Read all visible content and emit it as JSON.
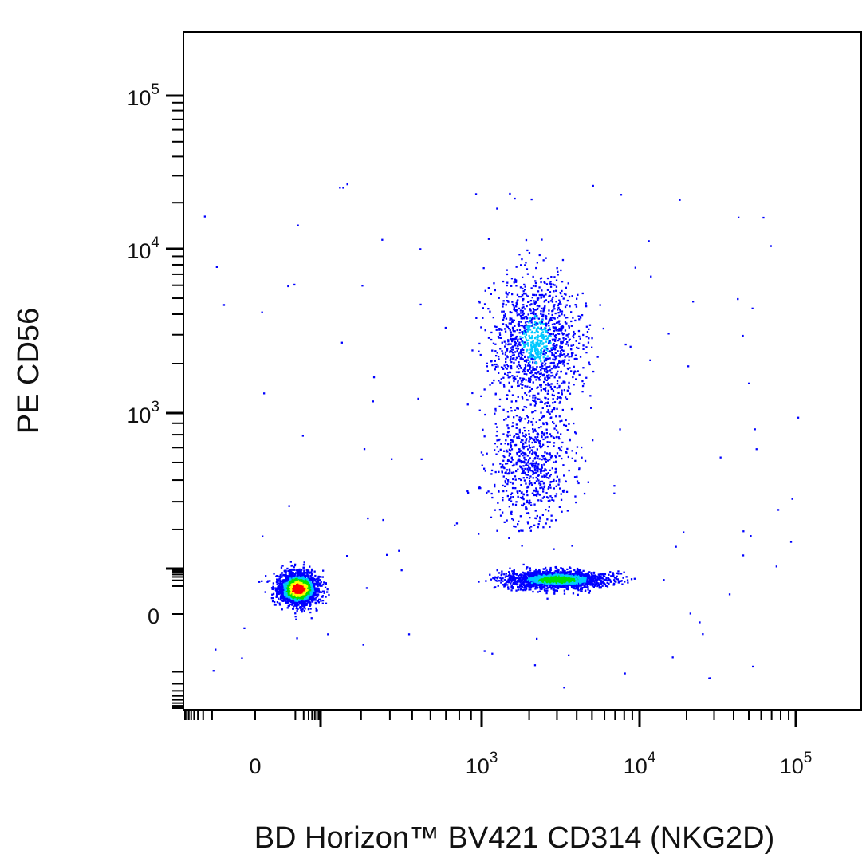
{
  "chart_data": {
    "type": "scatter",
    "subtype": "flow-cytometry-density-dot-plot",
    "xlabel": "BD Horizon™ BV421 CD314 (NKG2D)",
    "ylabel": "PE CD56",
    "x_scale": "biexponential",
    "y_scale": "biexponential",
    "x_ticks": [
      {
        "value": 0,
        "base": "0",
        "exp": ""
      },
      {
        "value": 1000,
        "base": "10",
        "exp": "3"
      },
      {
        "value": 10000,
        "base": "10",
        "exp": "4"
      },
      {
        "value": 100000,
        "base": "10",
        "exp": "5"
      }
    ],
    "y_ticks": [
      {
        "value": 0,
        "base": "0",
        "exp": ""
      },
      {
        "value": 1000,
        "base": "10",
        "exp": "3"
      },
      {
        "value": 10000,
        "base": "10",
        "exp": "4"
      },
      {
        "value": 100000,
        "base": "10",
        "exp": "5"
      }
    ],
    "xlim": [
      -200,
      250000
    ],
    "ylim": [
      -200,
      250000
    ],
    "grid": false,
    "legend": "none",
    "density_colors": [
      "#0000ff",
      "#00c8ff",
      "#00e000",
      "#ffff00",
      "#ff0000"
    ],
    "populations": [
      {
        "x_center": 30,
        "y_center": 20,
        "x_spread": 70,
        "y_spread": 65,
        "count": 2600,
        "peak_density": 1.0
      },
      {
        "x_center": 3000,
        "y_center": 60,
        "x_spread": 2200,
        "y_spread": 70,
        "count": 2100,
        "peak_density": 0.55
      },
      {
        "x_center": 2200,
        "y_center": 2800,
        "x_spread": 1400,
        "y_spread": 2800,
        "count": 1300,
        "peak_density": 0.3
      },
      {
        "x_center": 2000,
        "y_center": 600,
        "x_spread": 1200,
        "y_spread": 400,
        "count": 700,
        "peak_density": 0.15
      }
    ]
  }
}
